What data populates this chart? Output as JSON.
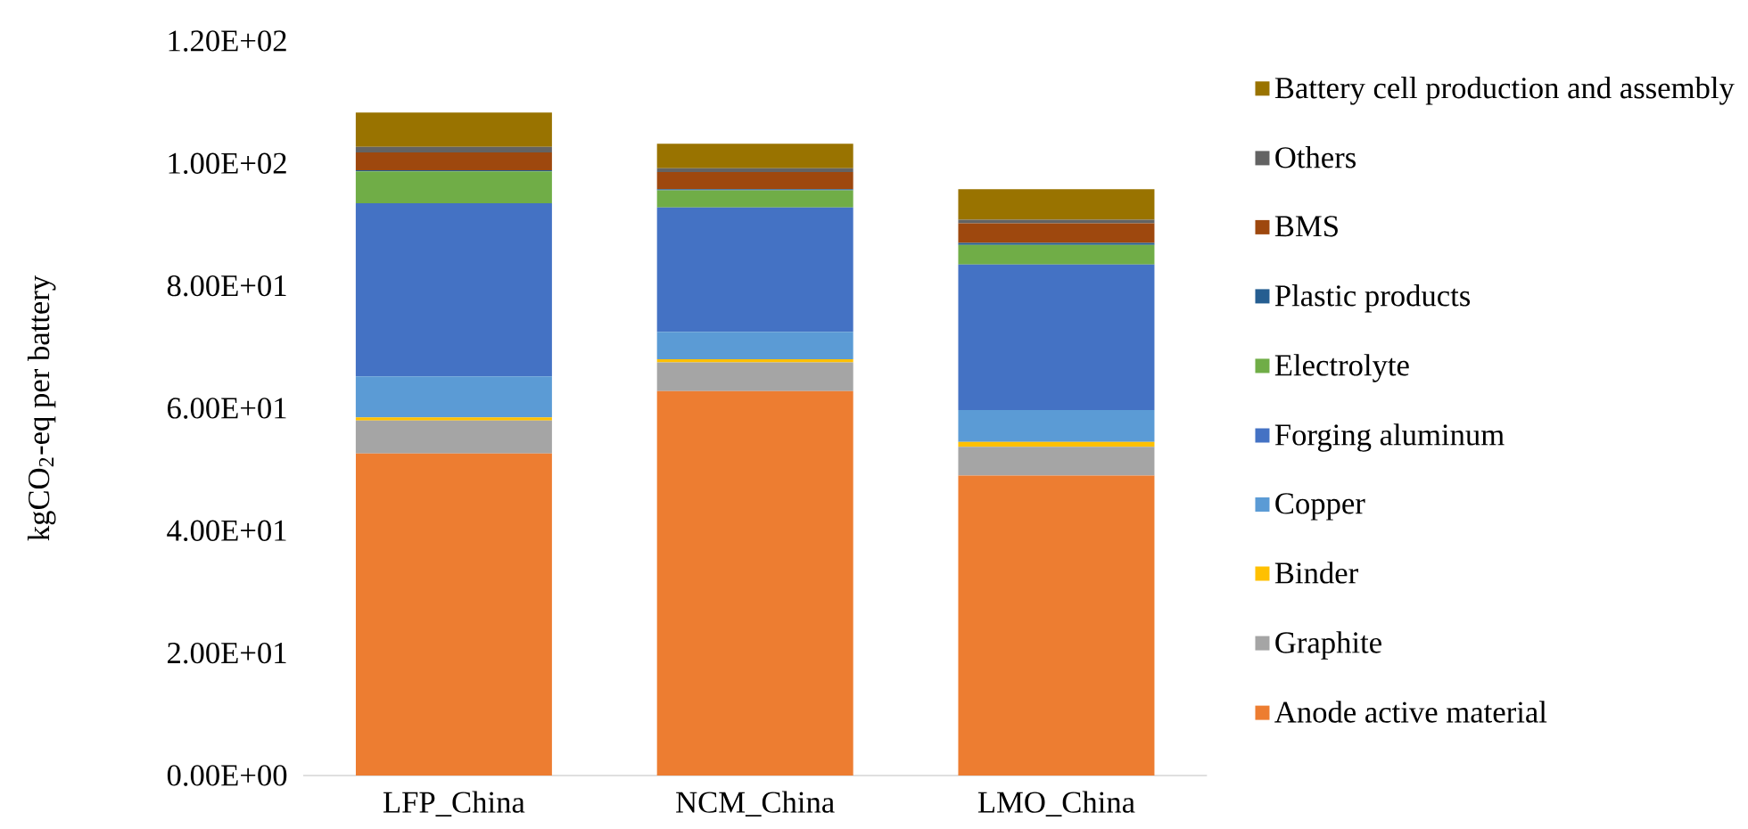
{
  "chart_data": {
    "type": "bar",
    "stacked": true,
    "ylabel": "kgCO$_{2}$-eq per battery",
    "categories": [
      "LFP_China",
      "NCM_China",
      "LMO_China"
    ],
    "series": [
      {
        "name": "Anode active material",
        "color": "#ed7d31",
        "values": [
          52.6,
          62.8,
          49.0
        ]
      },
      {
        "name": "Graphite",
        "color": "#a5a5a5",
        "values": [
          5.4,
          4.7,
          4.7
        ]
      },
      {
        "name": "Binder",
        "color": "#ffc000",
        "values": [
          0.5,
          0.5,
          0.8
        ]
      },
      {
        "name": "Copper",
        "color": "#5b9bd5",
        "values": [
          6.7,
          4.5,
          5.2
        ]
      },
      {
        "name": "Forging aluminum",
        "color": "#4472c4",
        "values": [
          28.3,
          20.3,
          23.8
        ]
      },
      {
        "name": "Electrolyte",
        "color": "#70ad47",
        "values": [
          5.2,
          2.8,
          3.2
        ]
      },
      {
        "name": "Plastic products",
        "color": "#255e91",
        "values": [
          0.2,
          0.2,
          0.3
        ]
      },
      {
        "name": "BMS",
        "color": "#9e480e",
        "values": [
          2.9,
          2.8,
          3.2
        ]
      },
      {
        "name": "Others",
        "color": "#636363",
        "values": [
          0.9,
          0.6,
          0.6
        ]
      },
      {
        "name": "Battery cell production and assembly",
        "color": "#997300",
        "values": [
          5.6,
          4.0,
          5.0
        ]
      }
    ],
    "ylim": [
      0,
      120
    ],
    "yticks": [
      {
        "value": 0,
        "label": "0.00E+00"
      },
      {
        "value": 20,
        "label": "2.00E+01"
      },
      {
        "value": 40,
        "label": "4.00E+01"
      },
      {
        "value": 60,
        "label": "6.00E+01"
      },
      {
        "value": 80,
        "label": "8.00E+01"
      },
      {
        "value": 100,
        "label": "1.00E+02"
      },
      {
        "value": 120,
        "label": "1.20E+02"
      }
    ],
    "grid": false,
    "legend": "right"
  }
}
